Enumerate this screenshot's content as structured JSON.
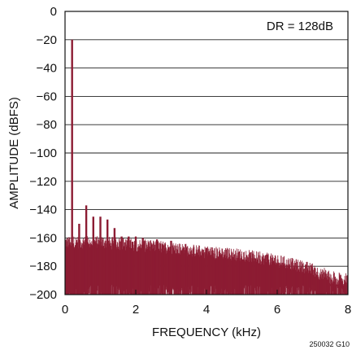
{
  "chart_data": {
    "type": "line",
    "title": "",
    "xlabel": "FREQUENCY (kHz)",
    "ylabel": "AMPLITUDE (dBFS)",
    "xlim": [
      0,
      8
    ],
    "ylim": [
      -200,
      0
    ],
    "x_ticks": [
      0,
      2,
      4,
      6,
      8
    ],
    "x_tick_labels": [
      "0",
      "2",
      "4",
      "6",
      "8"
    ],
    "y_ticks": [
      0,
      -20,
      -40,
      -60,
      -80,
      -100,
      -120,
      -140,
      -160,
      -180,
      -200
    ],
    "y_tick_labels": [
      "0",
      "−20",
      "−40",
      "−60",
      "−80",
      "−100",
      "−120",
      "−140",
      "−160",
      "−180",
      "−200"
    ],
    "grid": "horizontal",
    "series_color": "#8c1c33",
    "annotation": "DR = 128dB",
    "figure_id": "250032 G10",
    "spectrum_bins_khz": 0.025,
    "noise_floor_envelope": [
      {
        "x": 0.0,
        "y": -163
      },
      {
        "x": 1.0,
        "y": -163
      },
      {
        "x": 2.0,
        "y": -165
      },
      {
        "x": 3.0,
        "y": -167
      },
      {
        "x": 4.0,
        "y": -170
      },
      {
        "x": 5.0,
        "y": -172
      },
      {
        "x": 6.0,
        "y": -176
      },
      {
        "x": 7.0,
        "y": -182
      },
      {
        "x": 7.5,
        "y": -190
      },
      {
        "x": 8.0,
        "y": -192
      }
    ],
    "spurs": [
      {
        "x": 0.2,
        "y": -20
      },
      {
        "x": 0.4,
        "y": -150
      },
      {
        "x": 0.6,
        "y": -137
      },
      {
        "x": 0.8,
        "y": -145
      },
      {
        "x": 1.0,
        "y": -145
      },
      {
        "x": 1.2,
        "y": -147
      },
      {
        "x": 1.4,
        "y": -153
      },
      {
        "x": 1.6,
        "y": -159
      },
      {
        "x": 1.8,
        "y": -159
      },
      {
        "x": 2.0,
        "y": -159
      },
      {
        "x": 2.2,
        "y": -160
      },
      {
        "x": 2.6,
        "y": -161
      },
      {
        "x": 3.0,
        "y": -162
      },
      {
        "x": 4.0,
        "y": -167
      },
      {
        "x": 5.6,
        "y": -180
      },
      {
        "x": 6.0,
        "y": -182
      },
      {
        "x": 7.0,
        "y": -193
      },
      {
        "x": 7.6,
        "y": -200
      }
    ]
  }
}
